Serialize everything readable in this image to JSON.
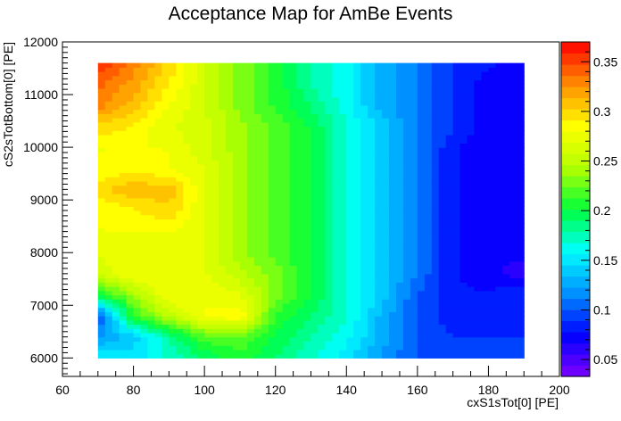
{
  "chart_data": {
    "type": "heatmap",
    "title": "Acceptance Map for AmBe Events",
    "xlabel": "cxS1sTot[0]  [PE]",
    "ylabel": "cS2sTotBottom[0]  [PE]",
    "xlim": [
      60,
      200
    ],
    "ylim": [
      5650,
      12000
    ],
    "x_ticks": [
      60,
      80,
      100,
      120,
      140,
      160,
      180,
      200
    ],
    "x_tick_labels": [
      "60",
      "80",
      "100",
      "120",
      "140",
      "160",
      "180",
      "200"
    ],
    "y_ticks": [
      6000,
      7000,
      8000,
      9000,
      10000,
      11000,
      12000
    ],
    "y_tick_labels": [
      "6000",
      "7000",
      "8000",
      "9000",
      "10000",
      "11000",
      "12000"
    ],
    "x": [
      70,
      80,
      90,
      100,
      110,
      120,
      130,
      140,
      150,
      160,
      170,
      180,
      190
    ],
    "y": [
      6000,
      6400,
      6800,
      7200,
      7600,
      8000,
      8400,
      8800,
      9200,
      9600,
      10000,
      10400,
      10800,
      11200,
      11600
    ],
    "z": [
      [
        0.16,
        0.15,
        0.17,
        0.19,
        0.21,
        0.19,
        0.17,
        0.15,
        0.12,
        0.1,
        0.1,
        0.1,
        0.1
      ],
      [
        0.12,
        0.14,
        0.18,
        0.22,
        0.22,
        0.2,
        0.18,
        0.16,
        0.13,
        0.1,
        0.09,
        0.09,
        0.09
      ],
      [
        0.09,
        0.21,
        0.25,
        0.28,
        0.29,
        0.21,
        0.19,
        0.17,
        0.13,
        0.1,
        0.08,
        0.08,
        0.08
      ],
      [
        0.2,
        0.24,
        0.28,
        0.28,
        0.27,
        0.23,
        0.2,
        0.17,
        0.14,
        0.1,
        0.08,
        0.08,
        0.09
      ],
      [
        0.26,
        0.28,
        0.28,
        0.27,
        0.25,
        0.23,
        0.2,
        0.17,
        0.14,
        0.11,
        0.08,
        0.07,
        0.06
      ],
      [
        0.27,
        0.28,
        0.28,
        0.27,
        0.24,
        0.22,
        0.2,
        0.17,
        0.14,
        0.11,
        0.08,
        0.07,
        0.07
      ],
      [
        0.28,
        0.28,
        0.28,
        0.27,
        0.24,
        0.22,
        0.2,
        0.17,
        0.14,
        0.11,
        0.08,
        0.07,
        0.07
      ],
      [
        0.28,
        0.29,
        0.3,
        0.27,
        0.24,
        0.22,
        0.2,
        0.17,
        0.14,
        0.11,
        0.08,
        0.07,
        0.07
      ],
      [
        0.3,
        0.31,
        0.31,
        0.27,
        0.24,
        0.22,
        0.2,
        0.17,
        0.14,
        0.11,
        0.08,
        0.07,
        0.07
      ],
      [
        0.28,
        0.29,
        0.28,
        0.27,
        0.24,
        0.22,
        0.2,
        0.17,
        0.14,
        0.11,
        0.08,
        0.07,
        0.07
      ],
      [
        0.28,
        0.28,
        0.28,
        0.26,
        0.24,
        0.22,
        0.2,
        0.17,
        0.14,
        0.11,
        0.08,
        0.07,
        0.07
      ],
      [
        0.3,
        0.29,
        0.27,
        0.26,
        0.24,
        0.22,
        0.2,
        0.17,
        0.14,
        0.11,
        0.09,
        0.07,
        0.07
      ],
      [
        0.33,
        0.31,
        0.28,
        0.26,
        0.23,
        0.21,
        0.19,
        0.16,
        0.13,
        0.11,
        0.09,
        0.07,
        0.07
      ],
      [
        0.34,
        0.32,
        0.29,
        0.26,
        0.23,
        0.21,
        0.18,
        0.16,
        0.13,
        0.11,
        0.09,
        0.07,
        0.07
      ],
      [
        0.36,
        0.33,
        0.3,
        0.26,
        0.23,
        0.21,
        0.18,
        0.16,
        0.13,
        0.11,
        0.09,
        0.08,
        0.07
      ]
    ],
    "zlim": [
      0.033,
      0.37
    ],
    "colorbar_ticks": [
      0.05,
      0.1,
      0.15,
      0.2,
      0.25,
      0.3,
      0.35
    ],
    "colorbar_tick_labels": [
      "0.05",
      "0.1",
      "0.15",
      "0.2",
      "0.25",
      "0.3",
      "0.35"
    ],
    "colorbar_levels": 30,
    "palette": [
      "#7f00ff",
      "#0000ff",
      "#0090ff",
      "#00ffff",
      "#00ff3c",
      "#b4ff00",
      "#ffff00",
      "#ff8c00",
      "#ff0000"
    ],
    "grid": false,
    "legend": "colorbar-right"
  }
}
